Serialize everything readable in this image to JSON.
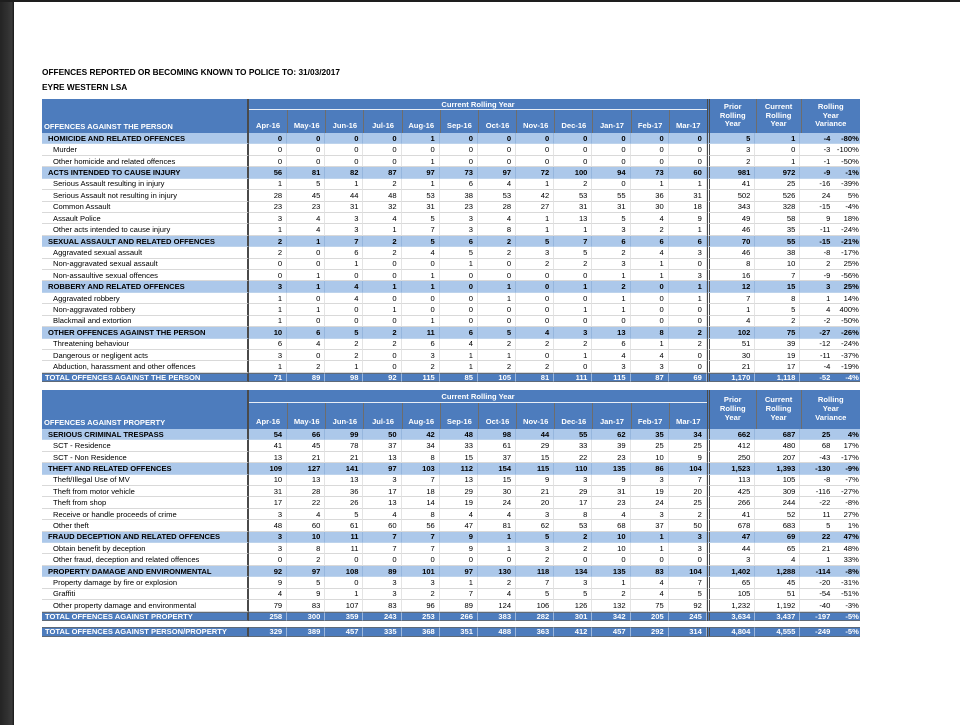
{
  "page": {
    "title": "OFFENCES REPORTED OR BECOMING KNOWN TO POLICE TO: 31/03/2017",
    "subtitle": "EYRE WESTERN LSA"
  },
  "colors": {
    "header_blue": "#4d7cbd",
    "category_blue": "#acc8ea",
    "total_blue": "#4d7cbd",
    "left_edge_dark": "#2e2e2e"
  },
  "column_headers": {
    "spanning": "Current Rolling Year",
    "months": [
      "Apr-16",
      "May-16",
      "Jun-16",
      "Jul-16",
      "Aug-16",
      "Sep-16",
      "Oct-16",
      "Nov-16",
      "Dec-16",
      "Jan-17",
      "Feb-17",
      "Mar-17"
    ],
    "prior": "Prior\nRolling\nYear",
    "current": "Current\nRolling\nYear",
    "variance": "Rolling\nYear\nVariance"
  },
  "tables": [
    {
      "label_header": "OFFENCES AGAINST THE PERSON",
      "rows": [
        {
          "kind": "category",
          "label": "HOMICIDE AND RELATED OFFENCES",
          "values": [
            0,
            0,
            0,
            0,
            1,
            0,
            0,
            0,
            0,
            0,
            0,
            0
          ],
          "prior": "5",
          "current": "1",
          "var": "-4",
          "pct": "-80%"
        },
        {
          "kind": "sub",
          "label": "Murder",
          "values": [
            0,
            0,
            0,
            0,
            0,
            0,
            0,
            0,
            0,
            0,
            0,
            0
          ],
          "prior": "3",
          "current": "0",
          "var": "-3",
          "pct": "-100%"
        },
        {
          "kind": "sub",
          "label": "Other homicide and related offences",
          "values": [
            0,
            0,
            0,
            0,
            1,
            0,
            0,
            0,
            0,
            0,
            0,
            0
          ],
          "prior": "2",
          "current": "1",
          "var": "-1",
          "pct": "-50%"
        },
        {
          "kind": "category",
          "label": "ACTS INTENDED TO CAUSE INJURY",
          "values": [
            56,
            81,
            82,
            87,
            97,
            73,
            97,
            72,
            100,
            94,
            73,
            60
          ],
          "prior": "981",
          "current": "972",
          "var": "-9",
          "pct": "-1%"
        },
        {
          "kind": "sub",
          "label": "Serious Assault resulting in injury",
          "values": [
            1,
            5,
            1,
            2,
            1,
            6,
            4,
            1,
            2,
            0,
            1,
            1
          ],
          "prior": "41",
          "current": "25",
          "var": "-16",
          "pct": "-39%"
        },
        {
          "kind": "sub",
          "label": "Serious Assault not resulting in injury",
          "values": [
            28,
            45,
            44,
            48,
            53,
            38,
            53,
            42,
            53,
            55,
            36,
            31
          ],
          "prior": "502",
          "current": "526",
          "var": "24",
          "pct": "5%"
        },
        {
          "kind": "sub",
          "label": "Common Assault",
          "values": [
            23,
            23,
            31,
            32,
            31,
            23,
            28,
            27,
            31,
            31,
            30,
            18
          ],
          "prior": "343",
          "current": "328",
          "var": "-15",
          "pct": "-4%"
        },
        {
          "kind": "sub",
          "label": "Assault Police",
          "values": [
            3,
            4,
            3,
            4,
            5,
            3,
            4,
            1,
            13,
            5,
            4,
            9
          ],
          "prior": "49",
          "current": "58",
          "var": "9",
          "pct": "18%"
        },
        {
          "kind": "sub",
          "label": "Other acts intended to cause injury",
          "values": [
            1,
            4,
            3,
            1,
            7,
            3,
            8,
            1,
            1,
            3,
            2,
            1
          ],
          "prior": "46",
          "current": "35",
          "var": "-11",
          "pct": "-24%"
        },
        {
          "kind": "category",
          "label": "SEXUAL ASSAULT AND RELATED OFFENCES",
          "values": [
            2,
            1,
            7,
            2,
            5,
            6,
            2,
            5,
            7,
            6,
            6,
            6
          ],
          "prior": "70",
          "current": "55",
          "var": "-15",
          "pct": "-21%"
        },
        {
          "kind": "sub",
          "label": "Aggravated sexual assault",
          "values": [
            2,
            0,
            6,
            2,
            4,
            5,
            2,
            3,
            5,
            2,
            4,
            3
          ],
          "prior": "46",
          "current": "38",
          "var": "-8",
          "pct": "-17%"
        },
        {
          "kind": "sub",
          "label": "Non-aggravated sexual assault",
          "values": [
            0,
            0,
            1,
            0,
            0,
            1,
            0,
            2,
            2,
            3,
            1,
            0
          ],
          "prior": "8",
          "current": "10",
          "var": "2",
          "pct": "25%"
        },
        {
          "kind": "sub",
          "label": "Non-assaultive sexual offences",
          "values": [
            0,
            1,
            0,
            0,
            1,
            0,
            0,
            0,
            0,
            1,
            1,
            3
          ],
          "prior": "16",
          "current": "7",
          "var": "-9",
          "pct": "-56%"
        },
        {
          "kind": "category",
          "label": "ROBBERY AND RELATED OFFENCES",
          "values": [
            3,
            1,
            4,
            1,
            1,
            0,
            1,
            0,
            1,
            2,
            0,
            1
          ],
          "prior": "12",
          "current": "15",
          "var": "3",
          "pct": "25%"
        },
        {
          "kind": "sub",
          "label": "Aggravated robbery",
          "values": [
            1,
            0,
            4,
            0,
            0,
            0,
            1,
            0,
            0,
            1,
            0,
            1
          ],
          "prior": "7",
          "current": "8",
          "var": "1",
          "pct": "14%"
        },
        {
          "kind": "sub",
          "label": "Non-aggravated robbery",
          "values": [
            1,
            1,
            0,
            1,
            0,
            0,
            0,
            0,
            1,
            1,
            0,
            0
          ],
          "prior": "1",
          "current": "5",
          "var": "4",
          "pct": "400%"
        },
        {
          "kind": "sub",
          "label": "Blackmail and extortion",
          "values": [
            1,
            0,
            0,
            0,
            1,
            0,
            0,
            0,
            0,
            0,
            0,
            0
          ],
          "prior": "4",
          "current": "2",
          "var": "-2",
          "pct": "-50%"
        },
        {
          "kind": "category",
          "label": "OTHER OFFENCES AGAINST THE PERSON",
          "values": [
            10,
            6,
            5,
            2,
            11,
            6,
            5,
            4,
            3,
            13,
            8,
            2
          ],
          "prior": "102",
          "current": "75",
          "var": "-27",
          "pct": "-26%"
        },
        {
          "kind": "sub",
          "label": "Threatening behaviour",
          "values": [
            6,
            4,
            2,
            2,
            6,
            4,
            2,
            2,
            2,
            6,
            1,
            2
          ],
          "prior": "51",
          "current": "39",
          "var": "-12",
          "pct": "-24%"
        },
        {
          "kind": "sub",
          "label": "Dangerous or negligent acts",
          "values": [
            3,
            0,
            2,
            0,
            3,
            1,
            1,
            0,
            1,
            4,
            4,
            0
          ],
          "prior": "30",
          "current": "19",
          "var": "-11",
          "pct": "-37%"
        },
        {
          "kind": "sub",
          "label": "Abduction, harassment and other offences",
          "values": [
            1,
            2,
            1,
            0,
            2,
            1,
            2,
            2,
            0,
            3,
            3,
            0
          ],
          "prior": "21",
          "current": "17",
          "var": "-4",
          "pct": "-19%"
        },
        {
          "kind": "total",
          "label": "TOTAL OFFENCES AGAINST THE PERSON",
          "values": [
            71,
            89,
            98,
            92,
            115,
            85,
            105,
            81,
            111,
            115,
            87,
            69
          ],
          "prior": "1,170",
          "current": "1,118",
          "var": "-52",
          "pct": "-4%"
        }
      ]
    },
    {
      "label_header": "OFFENCES AGAINST PROPERTY",
      "rows": [
        {
          "kind": "category",
          "label": "SERIOUS CRIMINAL TRESPASS",
          "values": [
            54,
            66,
            99,
            50,
            42,
            48,
            98,
            44,
            55,
            62,
            35,
            34
          ],
          "prior": "662",
          "current": "687",
          "var": "25",
          "pct": "4%"
        },
        {
          "kind": "sub",
          "label": "SCT - Residence",
          "values": [
            41,
            45,
            78,
            37,
            34,
            33,
            61,
            29,
            33,
            39,
            25,
            25
          ],
          "prior": "412",
          "current": "480",
          "var": "68",
          "pct": "17%"
        },
        {
          "kind": "sub",
          "label": "SCT - Non Residence",
          "values": [
            13,
            21,
            21,
            13,
            8,
            15,
            37,
            15,
            22,
            23,
            10,
            9
          ],
          "prior": "250",
          "current": "207",
          "var": "-43",
          "pct": "-17%"
        },
        {
          "kind": "category",
          "label": "THEFT AND RELATED OFFENCES",
          "values": [
            109,
            127,
            141,
            97,
            103,
            112,
            154,
            115,
            110,
            135,
            86,
            104
          ],
          "prior": "1,523",
          "current": "1,393",
          "var": "-130",
          "pct": "-9%"
        },
        {
          "kind": "sub",
          "label": "Theft/Illegal Use of MV",
          "values": [
            10,
            13,
            13,
            3,
            7,
            13,
            15,
            9,
            3,
            9,
            3,
            7
          ],
          "prior": "113",
          "current": "105",
          "var": "-8",
          "pct": "-7%"
        },
        {
          "kind": "sub",
          "label": "Theft from motor vehicle",
          "values": [
            31,
            28,
            36,
            17,
            18,
            29,
            30,
            21,
            29,
            31,
            19,
            20
          ],
          "prior": "425",
          "current": "309",
          "var": "-116",
          "pct": "-27%"
        },
        {
          "kind": "sub",
          "label": "Theft from shop",
          "values": [
            17,
            22,
            26,
            13,
            14,
            19,
            24,
            20,
            17,
            23,
            24,
            25
          ],
          "prior": "266",
          "current": "244",
          "var": "-22",
          "pct": "-8%"
        },
        {
          "kind": "sub",
          "label": "Receive or handle proceeds of crime",
          "values": [
            3,
            4,
            5,
            4,
            8,
            4,
            4,
            3,
            8,
            4,
            3,
            2
          ],
          "prior": "41",
          "current": "52",
          "var": "11",
          "pct": "27%"
        },
        {
          "kind": "sub",
          "label": "Other theft",
          "values": [
            48,
            60,
            61,
            60,
            56,
            47,
            81,
            62,
            53,
            68,
            37,
            50
          ],
          "prior": "678",
          "current": "683",
          "var": "5",
          "pct": "1%"
        },
        {
          "kind": "category",
          "label": "FRAUD DECEPTION AND RELATED OFFENCES",
          "values": [
            3,
            10,
            11,
            7,
            7,
            9,
            1,
            5,
            2,
            10,
            1,
            3
          ],
          "prior": "47",
          "current": "69",
          "var": "22",
          "pct": "47%"
        },
        {
          "kind": "sub",
          "label": "Obtain benefit by deception",
          "values": [
            3,
            8,
            11,
            7,
            7,
            9,
            1,
            3,
            2,
            10,
            1,
            3
          ],
          "prior": "44",
          "current": "65",
          "var": "21",
          "pct": "48%"
        },
        {
          "kind": "sub",
          "label": "Other fraud, deception and related offences",
          "values": [
            0,
            2,
            0,
            0,
            0,
            0,
            0,
            2,
            0,
            0,
            0,
            0
          ],
          "prior": "3",
          "current": "4",
          "var": "1",
          "pct": "33%"
        },
        {
          "kind": "category",
          "label": "PROPERTY DAMAGE AND ENVIRONMENTAL",
          "values": [
            92,
            97,
            108,
            89,
            101,
            97,
            130,
            118,
            134,
            135,
            83,
            104
          ],
          "prior": "1,402",
          "current": "1,288",
          "var": "-114",
          "pct": "-8%"
        },
        {
          "kind": "sub",
          "label": "Property damage by fire or explosion",
          "values": [
            9,
            5,
            0,
            3,
            3,
            1,
            2,
            7,
            3,
            1,
            4,
            7
          ],
          "prior": "65",
          "current": "45",
          "var": "-20",
          "pct": "-31%"
        },
        {
          "kind": "sub",
          "label": "Graffiti",
          "values": [
            4,
            9,
            1,
            3,
            2,
            7,
            4,
            5,
            5,
            2,
            4,
            5
          ],
          "prior": "105",
          "current": "51",
          "var": "-54",
          "pct": "-51%"
        },
        {
          "kind": "sub",
          "label": "Other property damage and environmental",
          "values": [
            79,
            83,
            107,
            83,
            96,
            89,
            124,
            106,
            126,
            132,
            75,
            92
          ],
          "prior": "1,232",
          "current": "1,192",
          "var": "-40",
          "pct": "-3%"
        },
        {
          "kind": "total",
          "label": "TOTAL OFFENCES AGAINST PROPERTY",
          "values": [
            258,
            300,
            359,
            243,
            253,
            266,
            383,
            282,
            301,
            342,
            205,
            245
          ],
          "prior": "3,634",
          "current": "3,437",
          "var": "-197",
          "pct": "-5%"
        }
      ]
    }
  ],
  "grand_total": {
    "kind": "total",
    "label": "TOTAL OFFENCES AGAINST PERSON/PROPERTY",
    "values": [
      329,
      389,
      457,
      335,
      368,
      351,
      488,
      363,
      412,
      457,
      292,
      314
    ],
    "prior": "4,804",
    "current": "4,555",
    "var": "-249",
    "pct": "-5%"
  }
}
